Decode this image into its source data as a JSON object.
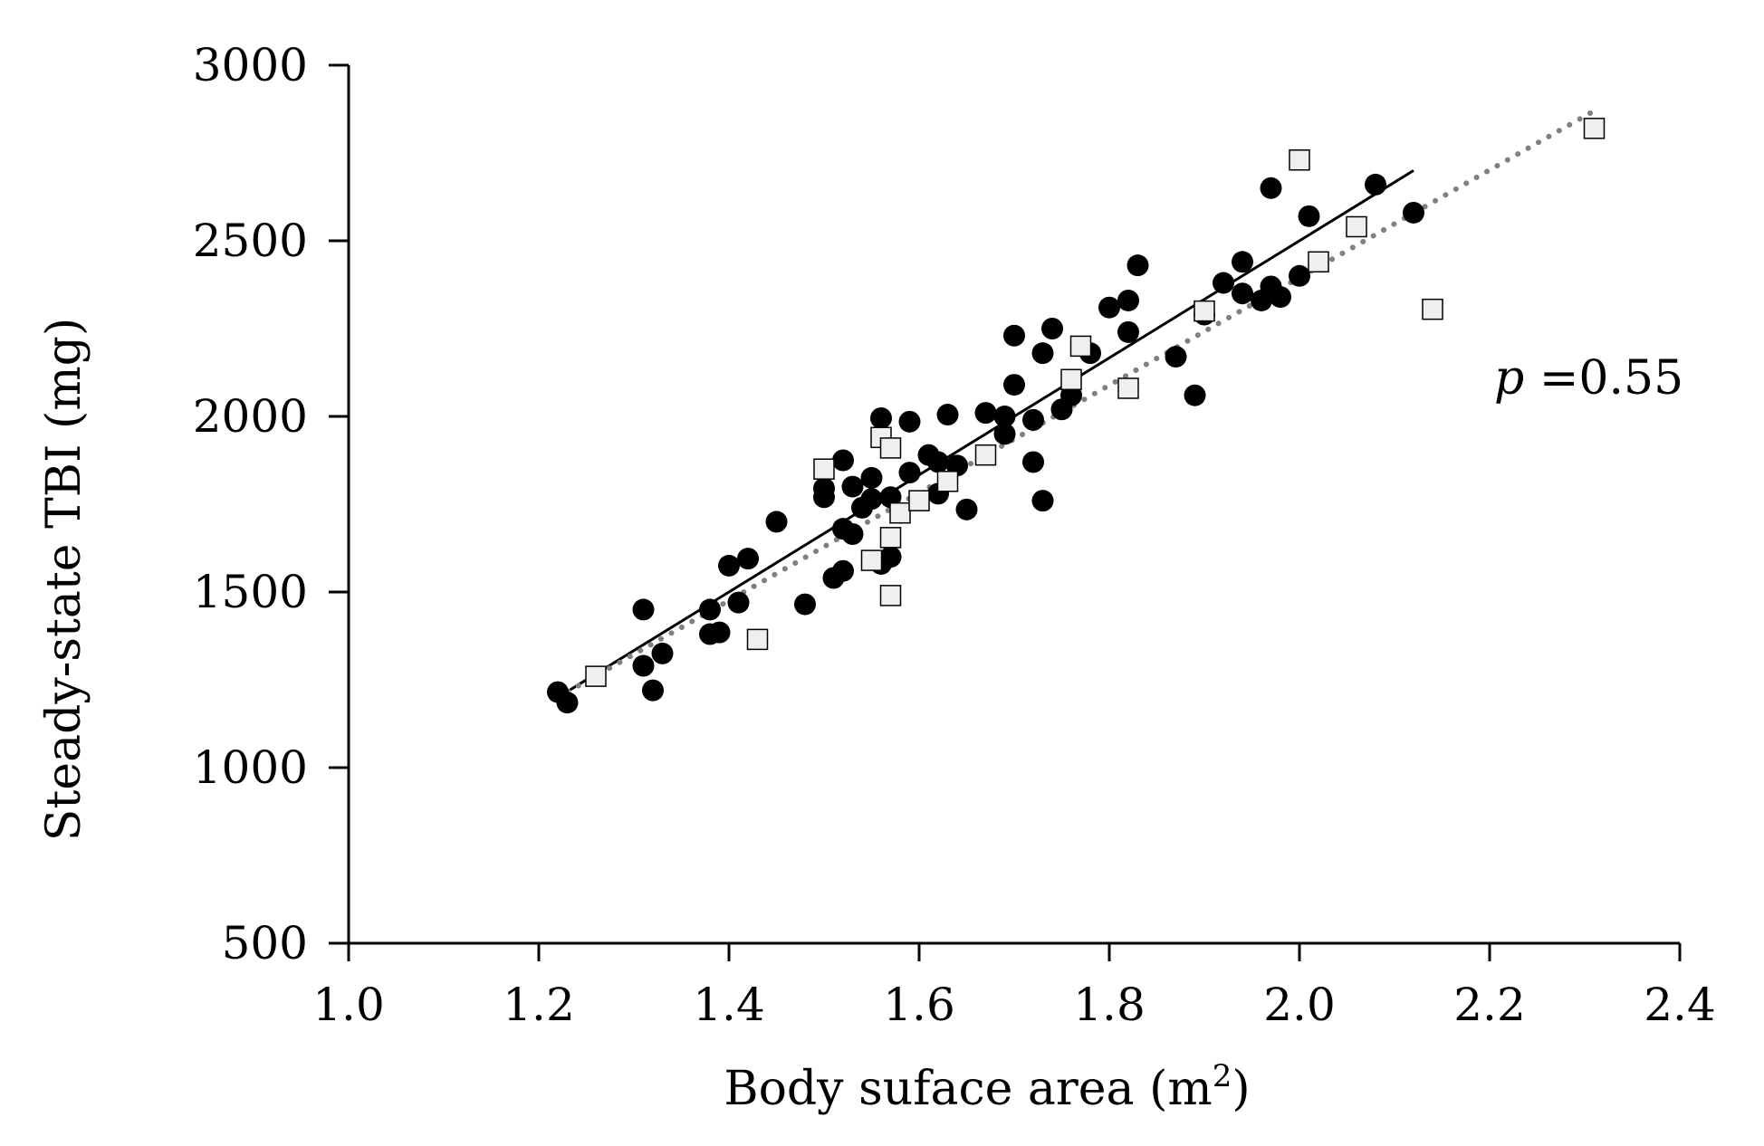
{
  "chart_data": {
    "type": "scatter",
    "title": "",
    "xlabel": "Body  suface area (m",
    "xlabel_sup": "2",
    "xlabel_end": ")",
    "ylabel": "Steady-state TBI (mg)",
    "xlim": [
      1.0,
      2.4
    ],
    "ylim": [
      500,
      3000
    ],
    "xticks": [
      1.0,
      1.2,
      1.4,
      1.6,
      1.8,
      2.0,
      2.2,
      2.4
    ],
    "xtick_labels": [
      "1.0",
      "1.2",
      "1.4",
      "1.6",
      "1.8",
      "2.0",
      "2.2",
      "2.4"
    ],
    "yticks": [
      500,
      1000,
      1500,
      2000,
      2500,
      3000
    ],
    "ytick_labels": [
      "500",
      "1000",
      "1500",
      "2000",
      "2500",
      "3000"
    ],
    "annotation": {
      "italic": "p",
      "text": " =0.55"
    },
    "colors": {
      "circle": "#000000",
      "square_fill": "#efefef",
      "square_stroke": "#000000",
      "line_solid": "#000000",
      "line_dotted": "#808080"
    },
    "series": [
      {
        "name": "filled circles",
        "marker": "circle",
        "points": [
          [
            1.22,
            1215
          ],
          [
            1.23,
            1185
          ],
          [
            1.31,
            1450
          ],
          [
            1.31,
            1290
          ],
          [
            1.32,
            1220
          ],
          [
            1.33,
            1325
          ],
          [
            1.38,
            1450
          ],
          [
            1.38,
            1380
          ],
          [
            1.39,
            1385
          ],
          [
            1.4,
            1575
          ],
          [
            1.41,
            1470
          ],
          [
            1.42,
            1595
          ],
          [
            1.45,
            1700
          ],
          [
            1.48,
            1465
          ],
          [
            1.5,
            1795
          ],
          [
            1.5,
            1770
          ],
          [
            1.51,
            1540
          ],
          [
            1.52,
            1875
          ],
          [
            1.52,
            1680
          ],
          [
            1.52,
            1560
          ],
          [
            1.53,
            1800
          ],
          [
            1.53,
            1665
          ],
          [
            1.54,
            1740
          ],
          [
            1.55,
            1765
          ],
          [
            1.55,
            1825
          ],
          [
            1.56,
            1995
          ],
          [
            1.56,
            1580
          ],
          [
            1.57,
            1600
          ],
          [
            1.57,
            1770
          ],
          [
            1.59,
            1840
          ],
          [
            1.59,
            1985
          ],
          [
            1.61,
            1890
          ],
          [
            1.62,
            1780
          ],
          [
            1.62,
            1870
          ],
          [
            1.63,
            2005
          ],
          [
            1.64,
            1860
          ],
          [
            1.65,
            1735
          ],
          [
            1.67,
            2010
          ],
          [
            1.69,
            2000
          ],
          [
            1.69,
            1950
          ],
          [
            1.7,
            2230
          ],
          [
            1.7,
            2090
          ],
          [
            1.72,
            1990
          ],
          [
            1.72,
            1870
          ],
          [
            1.73,
            2180
          ],
          [
            1.73,
            1760
          ],
          [
            1.74,
            2250
          ],
          [
            1.75,
            2020
          ],
          [
            1.76,
            2060
          ],
          [
            1.78,
            2180
          ],
          [
            1.8,
            2310
          ],
          [
            1.82,
            2240
          ],
          [
            1.82,
            2330
          ],
          [
            1.83,
            2430
          ],
          [
            1.87,
            2170
          ],
          [
            1.89,
            2060
          ],
          [
            1.9,
            2290
          ],
          [
            1.92,
            2380
          ],
          [
            1.94,
            2350
          ],
          [
            1.94,
            2440
          ],
          [
            1.96,
            2330
          ],
          [
            1.97,
            2650
          ],
          [
            1.97,
            2370
          ],
          [
            1.98,
            2340
          ],
          [
            2.0,
            2400
          ],
          [
            2.01,
            2570
          ],
          [
            2.08,
            2660
          ],
          [
            2.12,
            2580
          ]
        ]
      },
      {
        "name": "open squares",
        "marker": "square",
        "points": [
          [
            1.26,
            1260
          ],
          [
            1.43,
            1365
          ],
          [
            1.5,
            1850
          ],
          [
            1.55,
            1590
          ],
          [
            1.56,
            1940
          ],
          [
            1.57,
            1490
          ],
          [
            1.57,
            1910
          ],
          [
            1.57,
            1655
          ],
          [
            1.58,
            1725
          ],
          [
            1.6,
            1760
          ],
          [
            1.63,
            1815
          ],
          [
            1.67,
            1890
          ],
          [
            1.76,
            2105
          ],
          [
            1.77,
            2200
          ],
          [
            1.82,
            2080
          ],
          [
            1.9,
            2300
          ],
          [
            2.0,
            2730
          ],
          [
            2.02,
            2440
          ],
          [
            2.06,
            2540
          ],
          [
            2.14,
            2305
          ],
          [
            2.31,
            2820
          ]
        ]
      }
    ],
    "trendlines": [
      {
        "name": "solid fit",
        "style": "solid",
        "x": [
          1.22,
          2.12
        ],
        "y": [
          1200,
          2700
        ]
      },
      {
        "name": "dotted fit",
        "style": "dotted",
        "x": [
          1.22,
          2.31
        ],
        "y": [
          1200,
          2870
        ]
      }
    ]
  }
}
